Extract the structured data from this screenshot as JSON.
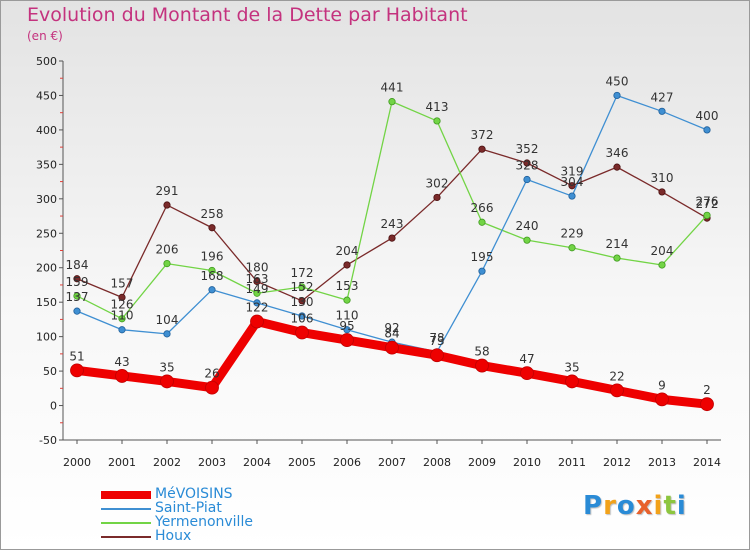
{
  "title": "Evolution du Montant de la Dette par Habitant",
  "subtitle": "(en €)",
  "logo": {
    "letters": [
      "P",
      "r",
      "o",
      "x",
      "i",
      "t",
      "i"
    ],
    "colors": [
      "#2a8bd6",
      "#f2a21a",
      "#2a8bd6",
      "#e8612c",
      "#f2a21a",
      "#8dc63f",
      "#2a8bd6"
    ]
  },
  "chart_data": {
    "type": "line",
    "x": [
      "2000",
      "2001",
      "2002",
      "2003",
      "2004",
      "2005",
      "2006",
      "2007",
      "2008",
      "2009",
      "2010",
      "2011",
      "2012",
      "2013",
      "2014"
    ],
    "ylim": [
      -50,
      500
    ],
    "yticks": [
      "-50",
      "0",
      "50",
      "100",
      "150",
      "200",
      "250",
      "300",
      "350",
      "400",
      "450",
      "500"
    ],
    "grid": false,
    "legend_position": "bottom-left",
    "series": [
      {
        "name": "MéVOISINS",
        "color": "#ee0000",
        "values": [
          51,
          43,
          35,
          26,
          122,
          106,
          95,
          84,
          73,
          58,
          47,
          35,
          22,
          9,
          2
        ],
        "labels": [
          "51",
          "43",
          "35",
          "26",
          "122",
          "106",
          "95",
          "84",
          "73",
          "58",
          "47",
          "35",
          "22",
          "9",
          "2"
        ]
      },
      {
        "name": "Saint-Piat",
        "color": "#3f8fd2",
        "values": [
          137,
          110,
          104,
          168,
          149,
          130,
          110,
          92,
          78,
          195,
          328,
          304,
          450,
          427,
          400
        ],
        "labels": [
          "137",
          "110",
          "104",
          "168",
          "149",
          "130",
          "110",
          "92",
          "78",
          "195",
          "328",
          "304",
          "450",
          "427",
          "400"
        ]
      },
      {
        "name": "Yermenonville",
        "color": "#72d445",
        "values": [
          159,
          126,
          206,
          196,
          163,
          172,
          153,
          441,
          413,
          266,
          240,
          229,
          214,
          204,
          276
        ],
        "labels": [
          "159",
          "126",
          "206",
          "196",
          "163",
          "172",
          "153",
          "441",
          "413",
          "266",
          "240",
          "229",
          "214",
          "204",
          "276"
        ]
      },
      {
        "name": "Houx",
        "color": "#7a2a2a",
        "values": [
          184,
          157,
          291,
          258,
          180,
          152,
          204,
          243,
          302,
          372,
          352,
          319,
          346,
          310,
          272
        ],
        "labels": [
          "184",
          "157",
          "291",
          "258",
          "180",
          "152",
          "204",
          "243",
          "302",
          "372",
          "352",
          "319",
          "346",
          "310",
          "272"
        ]
      }
    ]
  }
}
